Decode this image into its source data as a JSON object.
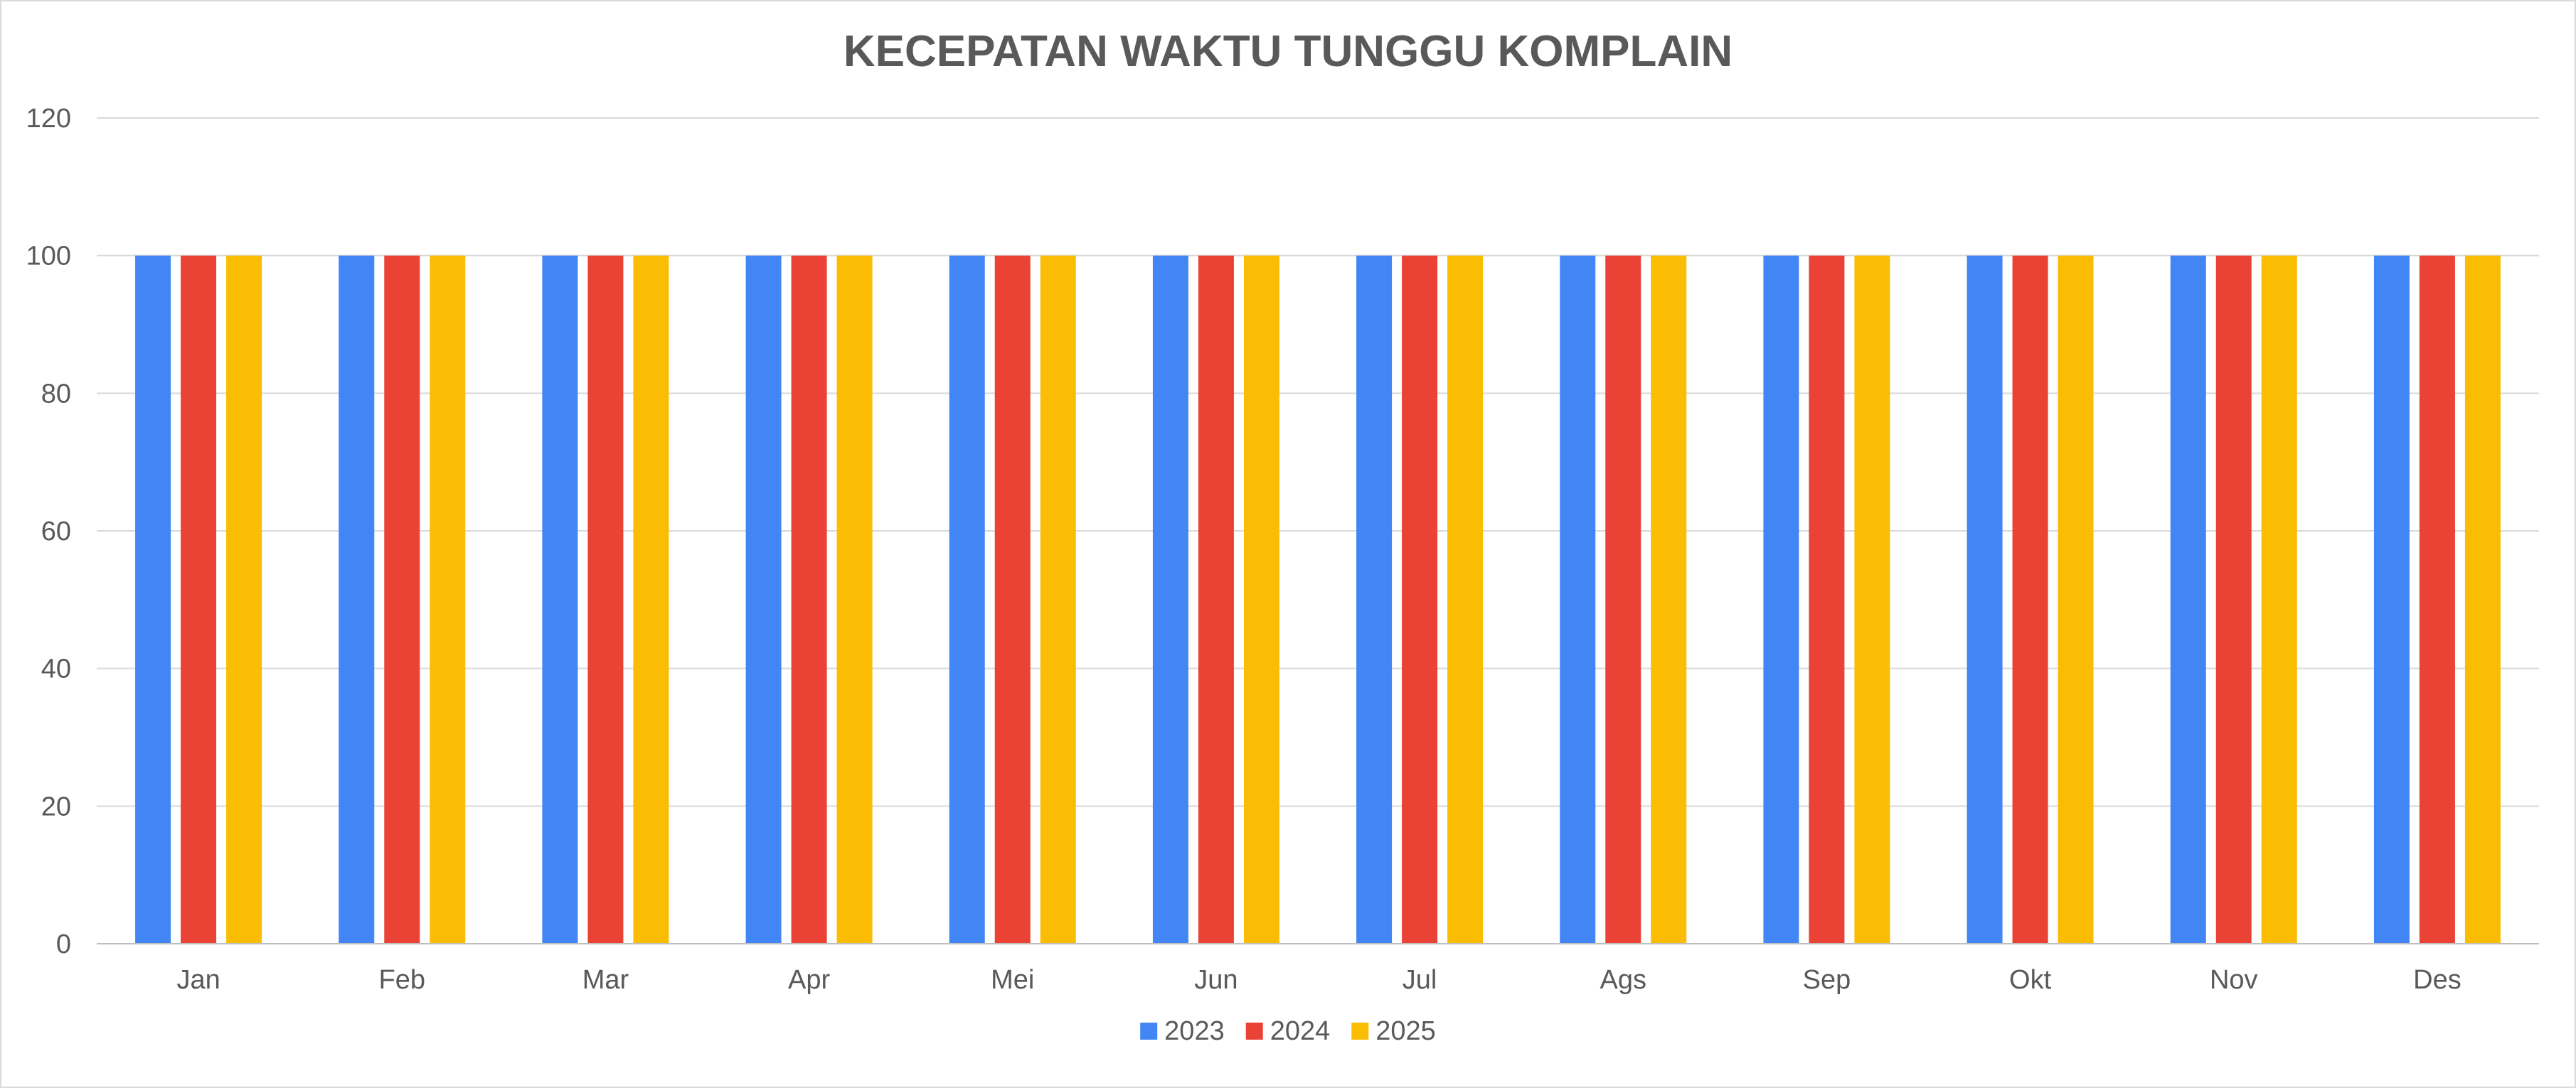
{
  "chart_data": {
    "type": "bar",
    "title": "KECEPATAN WAKTU TUNGGU KOMPLAIN",
    "xlabel": "",
    "ylabel": "",
    "categories": [
      "Jan",
      "Feb",
      "Mar",
      "Apr",
      "Mei",
      "Jun",
      "Jul",
      "Ags",
      "Sep",
      "Okt",
      "Nov",
      "Des"
    ],
    "series": [
      {
        "name": "2023",
        "color": "#4285f4",
        "values": [
          100,
          100,
          100,
          100,
          100,
          100,
          100,
          100,
          100,
          100,
          100,
          100
        ]
      },
      {
        "name": "2024",
        "color": "#ea4335",
        "values": [
          100,
          100,
          100,
          100,
          100,
          100,
          100,
          100,
          100,
          100,
          100,
          100
        ]
      },
      {
        "name": "2025",
        "color": "#fbbc04",
        "values": [
          100,
          100,
          100,
          100,
          100,
          100,
          100,
          100,
          100,
          100,
          100,
          100
        ]
      }
    ],
    "ylim": [
      0,
      120
    ],
    "yticks": [
      0,
      20,
      40,
      60,
      80,
      100,
      120
    ],
    "grid": true,
    "legend_position": "bottom"
  }
}
